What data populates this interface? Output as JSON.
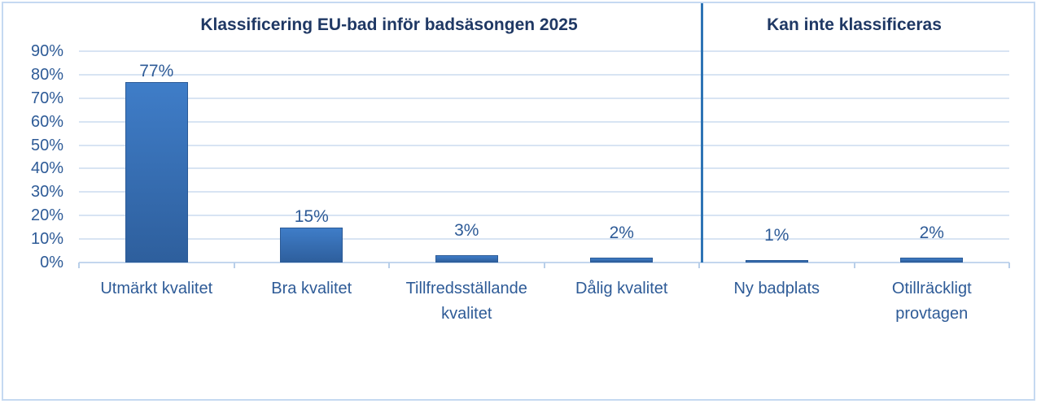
{
  "chart_data": {
    "type": "bar",
    "sections": [
      {
        "title": "Klassificering EU-bad inför badsäsongen 2025",
        "categories": [
          "Utmärkt kvalitet",
          "Bra kvalitet",
          "Tillfredsställande kvalitet",
          "Dålig kvalitet"
        ],
        "values": [
          77,
          15,
          3,
          2
        ]
      },
      {
        "title": "Kan inte klassificeras",
        "categories": [
          "Ny badplats",
          "Otillräckligt provtagen"
        ],
        "values": [
          1,
          2
        ]
      }
    ],
    "data_labels": [
      "77%",
      "15%",
      "3%",
      "2%",
      "1%",
      "2%"
    ],
    "y_axis": {
      "tick_labels": [
        "0%",
        "10%",
        "20%",
        "30%",
        "40%",
        "50%",
        "60%",
        "70%",
        "80%",
        "90%"
      ],
      "min": 0,
      "max": 90,
      "step": 10,
      "unit": "%"
    },
    "grid": true,
    "legend": "none",
    "colors": {
      "bar_top": "#3f7dc8",
      "bar_bottom": "#2e5f9d",
      "bar_border": "#2b5a96",
      "gridline": "#d8e4f3",
      "axis_line": "#c3d6ee",
      "tick": "#b9cfe9",
      "divider": "#2e74b5",
      "section_title": "#1f3864",
      "label_text": "#2e5b97",
      "frame_border": "#c5d9f1",
      "background": "#ffffff"
    }
  }
}
